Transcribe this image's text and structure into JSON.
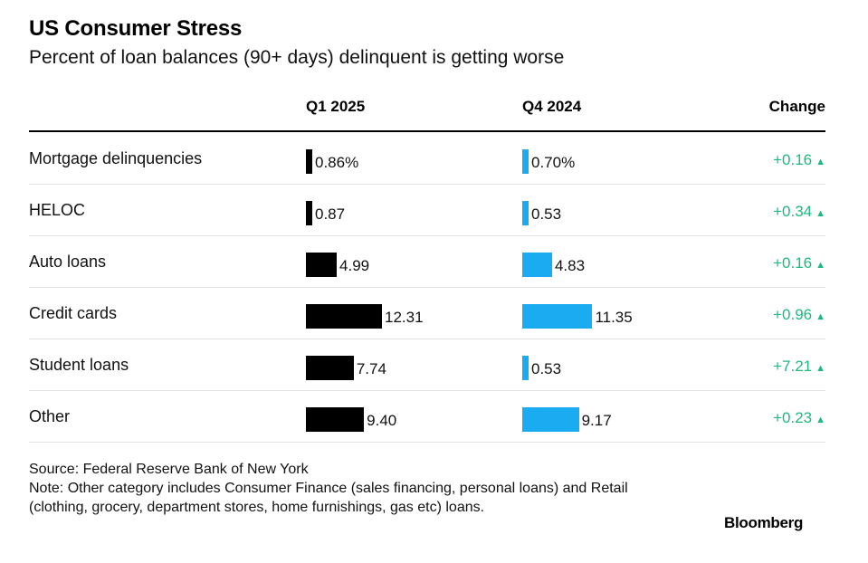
{
  "chart_data": {
    "type": "table",
    "title": "US Consumer Stress",
    "subtitle": "Percent of loan balances (90+ days) delinquent is getting worse",
    "columns": [
      "Q1 2025",
      "Q4 2024",
      "Change"
    ],
    "rows": [
      {
        "category": "Mortgage delinquencies",
        "q1_2025": 0.86,
        "q1_label": "0.86%",
        "q4_2024": 0.7,
        "q4_label": "0.70%",
        "change": "+0.16"
      },
      {
        "category": "HELOC",
        "q1_2025": 0.87,
        "q1_label": "0.87",
        "q4_2024": 0.53,
        "q4_label": "0.53",
        "change": "+0.34"
      },
      {
        "category": "Auto loans",
        "q1_2025": 4.99,
        "q1_label": "4.99",
        "q4_2024": 4.83,
        "q4_label": "4.83",
        "change": "+0.16"
      },
      {
        "category": "Credit cards",
        "q1_2025": 12.31,
        "q1_label": "12.31",
        "q4_2024": 11.35,
        "q4_label": "11.35",
        "change": "+0.96"
      },
      {
        "category": "Student loans",
        "q1_2025": 7.74,
        "q1_label": "7.74",
        "q4_2024": 0.53,
        "q4_label": "0.53",
        "change": "+7.21"
      },
      {
        "category": "Other",
        "q1_2025": 9.4,
        "q1_label": "9.40",
        "q4_2024": 9.17,
        "q4_label": "9.17",
        "change": "+0.23"
      }
    ],
    "max_value": 12.31,
    "change_arrow": "▲",
    "colors": {
      "q1": "#000000",
      "q4": "#1aabf0",
      "change": "#1db97f"
    }
  },
  "footer": {
    "source": "Source: Federal Reserve Bank of New York",
    "note": "Note: Other category includes Consumer Finance (sales financing, personal loans) and Retail (clothing, grocery, department stores, home furnishings, gas etc) loans.",
    "brand": "Bloomberg"
  }
}
